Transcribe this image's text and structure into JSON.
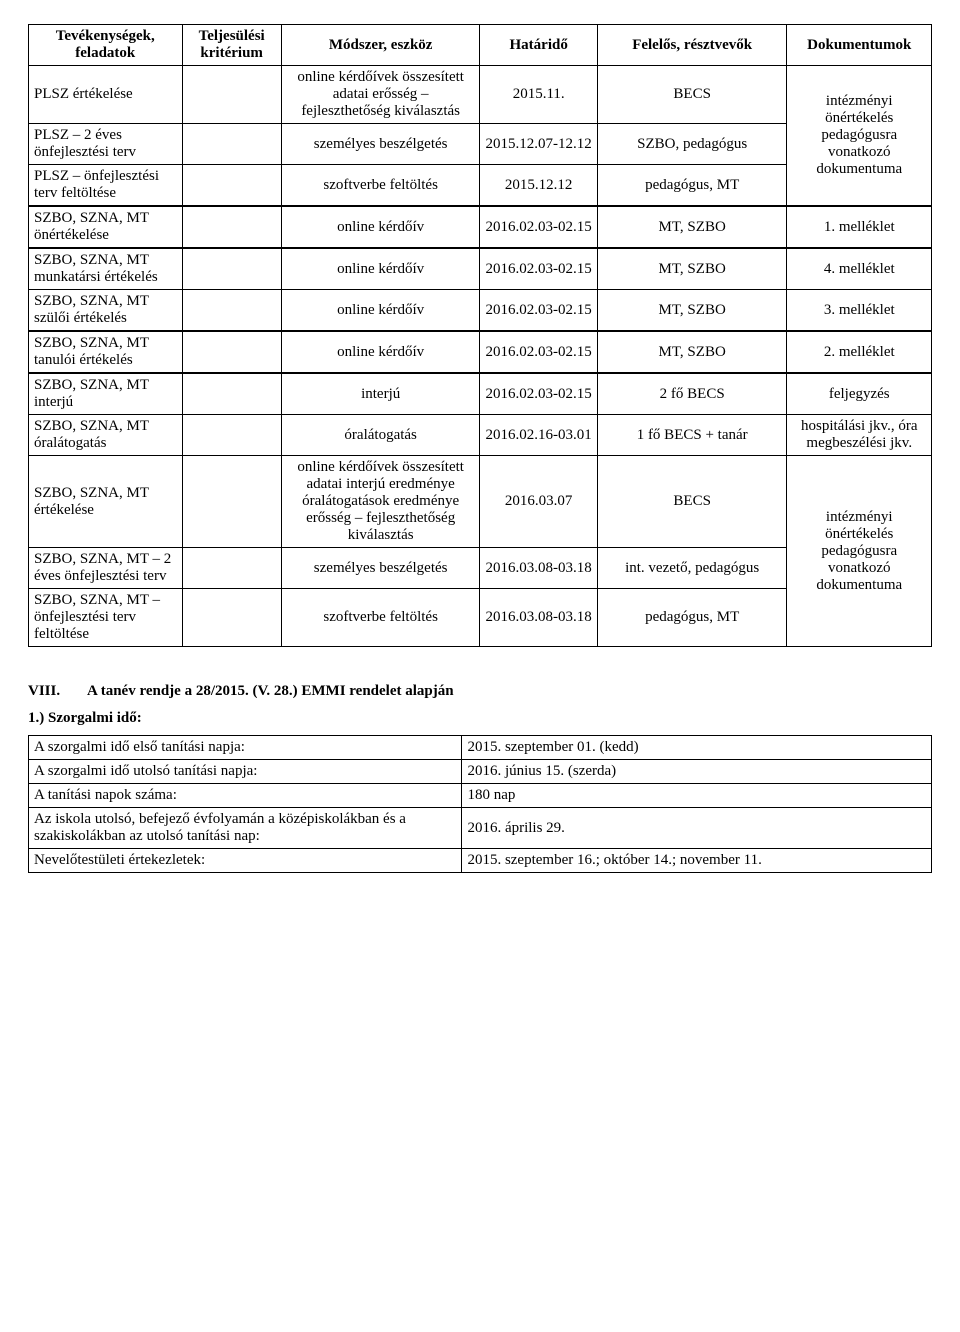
{
  "table1": {
    "headers": [
      "Tevékenységek, feladatok",
      "Teljesülési kritérium",
      "Módszer, eszköz",
      "Határidő",
      "Felelős, résztvevők",
      "Dokumentumok"
    ],
    "rows": [
      {
        "a": "PLSZ értékelése",
        "c": "online kérdőívek összesített adatai erősség – fejleszthetőség kiválasztás",
        "d": "2015.11.",
        "e": "BECS",
        "f": "intézményi önértékelés pedagógusra vonatkozó dokumentuma",
        "fRowspan": 3
      },
      {
        "a": "PLSZ – 2 éves önfejlesztési terv",
        "c": "személyes beszélgetés",
        "d": "2015.12.07-12.12",
        "e": "SZBO, pedagógus"
      },
      {
        "a": "PLSZ – önfejlesztési terv feltöltése",
        "c": "szoftverbe feltöltés",
        "d": "2015.12.12",
        "e": "pedagógus, MT"
      },
      {
        "a": "SZBO, SZNA, MT önértékelése",
        "c": "online kérdőív",
        "d": "2016.02.03-02.15",
        "e": "MT, SZBO",
        "f": "1. melléklet",
        "gap": true
      },
      {
        "a": "SZBO, SZNA, MT munkatársi értékelés",
        "c": "online kérdőív",
        "d": "2016.02.03-02.15",
        "e": "MT, SZBO",
        "f": "4. melléklet",
        "gap": true
      },
      {
        "a": "SZBO, SZNA, MT szülői értékelés",
        "c": "online kérdőív",
        "d": "2016.02.03-02.15",
        "e": "MT, SZBO",
        "f": "3. melléklet"
      },
      {
        "a": "SZBO, SZNA, MT tanulói értékelés",
        "c": "online kérdőív",
        "d": "2016.02.03-02.15",
        "e": "MT, SZBO",
        "f": "2. melléklet",
        "gap": true
      },
      {
        "a": "SZBO, SZNA, MT interjú",
        "c": "interjú",
        "d": "2016.02.03-02.15",
        "e": "2 fő BECS",
        "f": "feljegyzés",
        "gap": true
      },
      {
        "a": "SZBO, SZNA, MT óralátogatás",
        "c": "óralátogatás",
        "d": "2016.02.16-03.01",
        "e": "1 fő BECS + tanár",
        "f": "hospitálási jkv., óra megbeszélési jkv."
      },
      {
        "a": "SZBO, SZNA, MT értékelése",
        "c": "online kérdőívek összesített adatai interjú eredménye óralátogatások eredménye erősség – fejleszthetőség kiválasztás",
        "d": "2016.03.07",
        "e": "BECS",
        "f": "intézményi önértékelés pedagógusra vonatkozó dokumentuma",
        "fRowspan": 3
      },
      {
        "a": "SZBO, SZNA, MT – 2 éves önfejlesztési terv",
        "c": "személyes beszélgetés",
        "d": "2016.03.08-03.18",
        "e": "int. vezető, pedagógus"
      },
      {
        "a": "SZBO, SZNA, MT – önfejlesztési terv feltöltése",
        "c": "szoftverbe feltöltés",
        "d": "2016.03.08-03.18",
        "e": "pedagógus, MT"
      }
    ]
  },
  "section": {
    "num": "VIII.",
    "title": "A tanév rendje a 28/2015. (V. 28.) EMMI rendelet alapján"
  },
  "sub": "1.) Szorgalmi idő:",
  "table2": {
    "rows": [
      [
        "A szorgalmi idő első tanítási napja:",
        "2015. szeptember 01. (kedd)"
      ],
      [
        "A szorgalmi idő utolsó tanítási napja:",
        "2016. június 15. (szerda)"
      ],
      [
        "A tanítási napok száma:",
        "180 nap"
      ],
      [
        "Az iskola utolsó, befejező évfolyamán a középiskolákban és  a szakiskolákban az utolsó tanítási nap:",
        "2016. április 29."
      ],
      [
        "Nevelőtestületi értekezletek:",
        "2015. szeptember 16.; október 14.; november 11."
      ]
    ]
  }
}
